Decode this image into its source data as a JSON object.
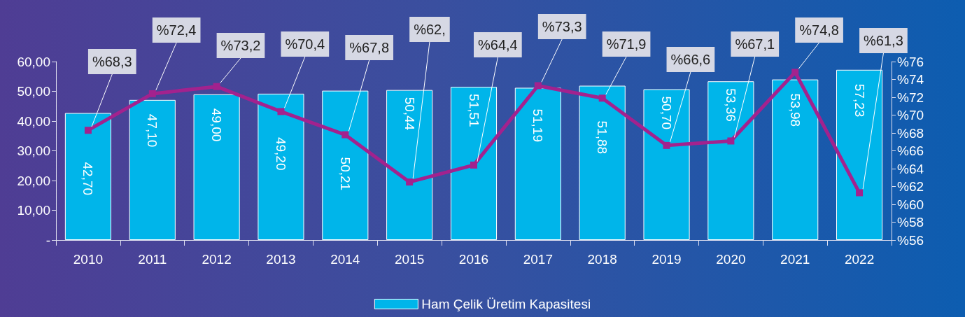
{
  "chart_data": {
    "type": "bar",
    "categories": [
      "2010",
      "2011",
      "2012",
      "2013",
      "2014",
      "2015",
      "2016",
      "2017",
      "2018",
      "2019",
      "2020",
      "2021",
      "2022"
    ],
    "series": [
      {
        "name": "Ham Çelik Üretim Kapasitesi",
        "color": "#00b5ea",
        "values": [
          42.7,
          47.1,
          49.0,
          49.2,
          50.21,
          50.44,
          51.51,
          51.19,
          51.88,
          50.7,
          53.36,
          53.98,
          57.23
        ],
        "value_labels": [
          "42,70",
          "47,10",
          "49,00",
          "49,20",
          "50,21",
          "50,44",
          "51,51",
          "51,19",
          "51,88",
          "50,70",
          "53,36",
          "53,98",
          "57,23"
        ]
      },
      {
        "type": "line",
        "axis": "y2",
        "color": "#a3228e",
        "marker": "square",
        "values": [
          68.3,
          72.4,
          73.2,
          70.4,
          67.8,
          62.5,
          64.4,
          73.3,
          71.9,
          66.6,
          67.1,
          74.8,
          61.3
        ],
        "value_labels": [
          "%68,3",
          "%72,4",
          "%73,2",
          "%70,4",
          "%67,8",
          "%62,",
          "%64,4",
          "%73,3",
          "%71,9",
          "%66,6",
          "%67,1",
          "%74,8",
          "%61,3"
        ]
      }
    ],
    "ylim": [
      0,
      60
    ],
    "yticks": [
      {
        "value": 0,
        "label": "-"
      },
      {
        "value": 10,
        "label": "10,00"
      },
      {
        "value": 20,
        "label": "20,00"
      },
      {
        "value": 30,
        "label": "30,00"
      },
      {
        "value": 40,
        "label": "40,00"
      },
      {
        "value": 50,
        "label": "50,00"
      },
      {
        "value": 60,
        "label": "60,00"
      }
    ],
    "y2lim": [
      56,
      76
    ],
    "y2ticks": [
      {
        "value": 56,
        "label": "%56"
      },
      {
        "value": 58,
        "label": "%58"
      },
      {
        "value": 60,
        "label": "%60"
      },
      {
        "value": 62,
        "label": "%62"
      },
      {
        "value": 64,
        "label": "%64"
      },
      {
        "value": 66,
        "label": "%66"
      },
      {
        "value": 68,
        "label": "%68"
      },
      {
        "value": 70,
        "label": "%70"
      },
      {
        "value": 72,
        "label": "%72"
      },
      {
        "value": 74,
        "label": "%74"
      },
      {
        "value": 76,
        "label": "%76"
      }
    ],
    "grid": false,
    "legend": "bottom"
  }
}
